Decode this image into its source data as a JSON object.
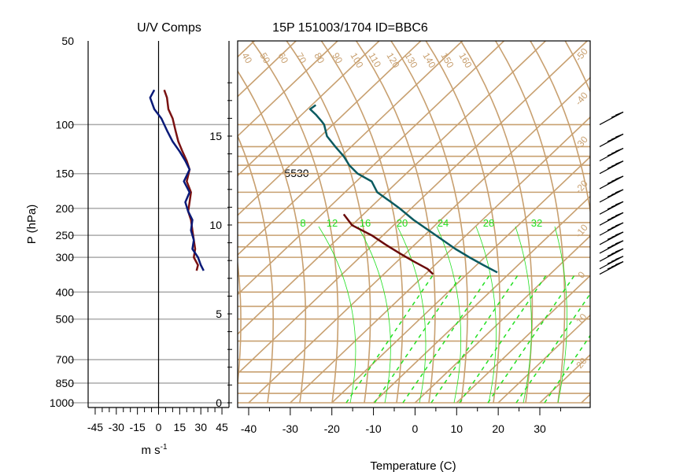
{
  "chart_data": [
    {
      "type": "line",
      "title": "U/V Comps",
      "xlabel": "m s",
      "xlabel_exp": "-1",
      "ylabel": "P (hPa)",
      "y_scale": "log",
      "y_reversed": true,
      "xlim": [
        -50,
        50
      ],
      "ylim": [
        1000,
        50
      ],
      "x_ticks": [
        "-45",
        "-30",
        "-15",
        "0",
        "15",
        "30",
        "45"
      ],
      "x_tick_values": [
        -45,
        -30,
        -15,
        0,
        15,
        30,
        45
      ],
      "y_ticks": [
        "50",
        "100",
        "150",
        "200",
        "250",
        "300",
        "400",
        "500",
        "700",
        "850",
        "1000"
      ],
      "y_tick_values": [
        50,
        100,
        150,
        200,
        250,
        300,
        400,
        500,
        700,
        850,
        1000
      ],
      "colors": {
        "u": "#7a1212",
        "v": "#0a1a78",
        "grid": "#aaaaaa"
      },
      "series": [
        {
          "color": "#7a1212",
          "pressure": [
            75,
            80,
            88,
            95,
            105,
            115,
            125,
            135,
            145,
            160,
            175,
            190,
            205,
            220,
            240,
            260,
            280,
            300,
            320,
            335
          ],
          "values": [
            4,
            6,
            7,
            10,
            12,
            14,
            17,
            20,
            22,
            20,
            23,
            22,
            21,
            23,
            24,
            25,
            26,
            25,
            28,
            27
          ]
        },
        {
          "color": "#0a1a78",
          "pressure": [
            75,
            80,
            88,
            95,
            105,
            115,
            125,
            135,
            145,
            160,
            175,
            190,
            205,
            220,
            240,
            260,
            280,
            300,
            320,
            335
          ],
          "values": [
            -3,
            -6,
            -3,
            2,
            6,
            10,
            15,
            19,
            22,
            18,
            22,
            19,
            21,
            24,
            23,
            25,
            24,
            28,
            30,
            32
          ]
        }
      ]
    },
    {
      "type": "line",
      "title": "15P 151003/1704 ID=BBC6",
      "xlabel": "Temperature (C)",
      "x_ticks": [
        "-40",
        "-30",
        "-20",
        "-10",
        "0",
        "10",
        "20",
        "30"
      ],
      "x_tick_values": [
        -40,
        -30,
        -20,
        -10,
        0,
        10,
        20,
        30
      ],
      "height_ticks": [
        "0",
        "5",
        "10",
        "15"
      ],
      "height_tick_values": [
        0,
        5,
        10,
        15
      ],
      "height_label": "5530",
      "isotherm_labels": [
        "-50",
        "-40",
        "-30",
        "-20",
        "-10",
        "0",
        "10",
        "20"
      ],
      "dry_adiabat_labels": [
        "40",
        "50",
        "60",
        "70",
        "80",
        "90",
        "100",
        "110",
        "120",
        "130",
        "140",
        "150",
        "160"
      ],
      "moist_adiabat_labels": [
        "8",
        "12",
        "16",
        "20",
        "24",
        "28",
        "32"
      ],
      "colors": {
        "lines": "#c8a070",
        "temperature": "#0a5a60",
        "dewpoint": "#6a0a0a",
        "mixing": "#22e022"
      },
      "series": [
        {
          "color": "#0a5a60",
          "pressure": [
            85,
            88,
            92,
            97,
            100,
            110,
            120,
            130,
            140,
            150,
            160,
            175,
            190,
            200,
            220,
            250,
            280,
            300,
            320,
            340
          ],
          "values": [
            -70,
            -72,
            -70,
            -68,
            -67,
            -66,
            -63,
            -60,
            -58,
            -55,
            -50,
            -48,
            -43,
            -40,
            -35,
            -27,
            -20,
            -15,
            -10,
            -5
          ]
        },
        {
          "color": "#6a0a0a",
          "pressure": [
            210,
            230,
            250,
            270,
            290,
            310,
            330,
            345
          ],
          "values": [
            -60,
            -57,
            -50,
            -45,
            -40,
            -35,
            -30,
            -28
          ]
        }
      ],
      "wind_barbs": [
        {
          "pressure": 100,
          "speed": 20
        },
        {
          "pressure": 120,
          "speed": 25
        },
        {
          "pressure": 135,
          "speed": 30
        },
        {
          "pressure": 150,
          "speed": 30
        },
        {
          "pressure": 170,
          "speed": 35
        },
        {
          "pressure": 190,
          "speed": 35
        },
        {
          "pressure": 210,
          "speed": 30
        },
        {
          "pressure": 230,
          "speed": 30
        },
        {
          "pressure": 250,
          "speed": 35
        },
        {
          "pressure": 270,
          "speed": 35
        },
        {
          "pressure": 290,
          "speed": 30
        },
        {
          "pressure": 310,
          "speed": 30
        },
        {
          "pressure": 330,
          "speed": 30
        },
        {
          "pressure": 345,
          "speed": 25
        }
      ]
    }
  ]
}
